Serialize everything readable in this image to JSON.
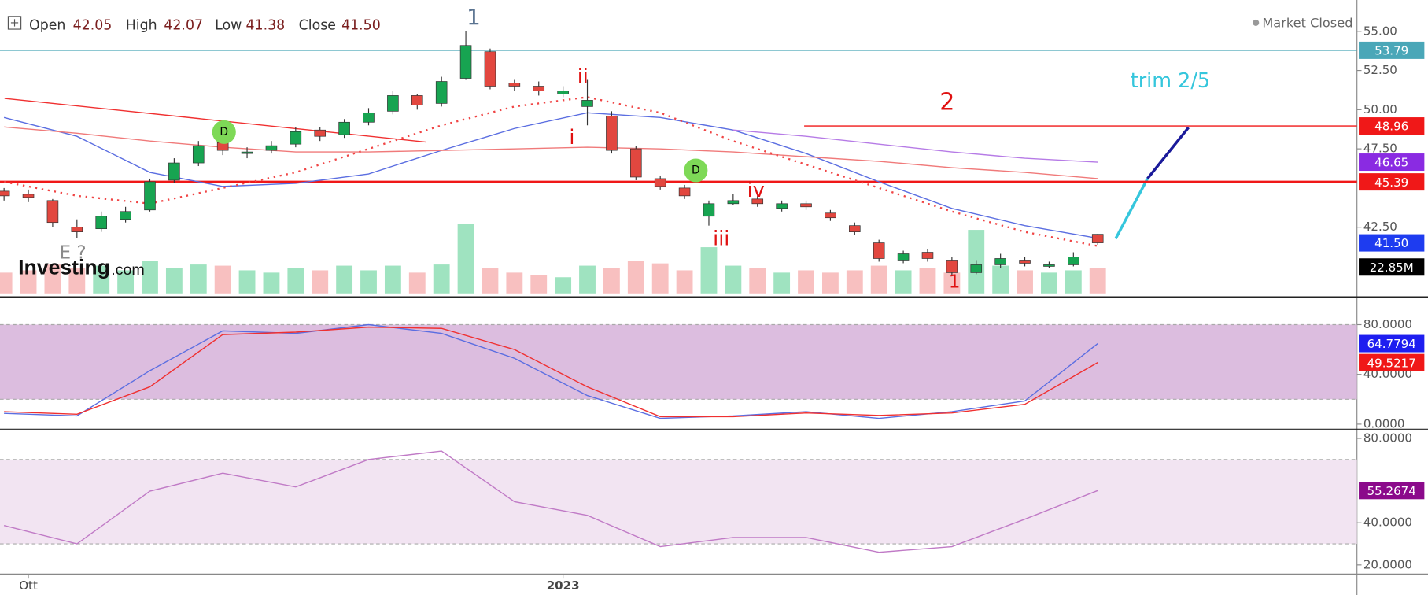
{
  "header": {
    "items": [
      {
        "label": "Open",
        "value": "42.05"
      },
      {
        "label": "High",
        "value": "42.07"
      },
      {
        "label": "Low",
        "value": "41.38"
      },
      {
        "label": "Close",
        "value": "41.50"
      }
    ],
    "status": "Market Closed"
  },
  "logo": [
    "Investing",
    ".com"
  ],
  "chart_data": [
    {
      "type": "candlestick",
      "x": [
        0,
        3,
        6,
        9,
        12,
        15,
        18,
        21,
        24,
        27,
        30,
        33,
        36,
        39,
        42,
        45,
        48,
        51,
        54,
        57,
        60,
        63,
        66,
        69,
        72,
        75,
        78,
        81,
        84,
        87,
        90,
        93,
        96,
        99,
        102,
        105,
        108,
        111,
        114,
        117,
        120,
        123,
        126,
        129,
        132,
        135
      ],
      "open": [
        44.8,
        44.6,
        44.2,
        42.5,
        42.4,
        43.0,
        43.6,
        45.5,
        46.6,
        47.9,
        47.2,
        47.4,
        47.8,
        48.7,
        48.4,
        49.2,
        49.9,
        50.9,
        50.4,
        52.0,
        53.7,
        51.7,
        51.5,
        51.0,
        50.2,
        49.6,
        47.5,
        45.6,
        45.0,
        43.2,
        44.0,
        44.3,
        43.7,
        44.0,
        43.4,
        42.6,
        41.5,
        40.4,
        40.9,
        40.4,
        39.6,
        40.1,
        40.4,
        40.0,
        40.1,
        42.05
      ],
      "high": [
        45.0,
        44.9,
        44.3,
        43.0,
        43.5,
        43.8,
        45.6,
        46.9,
        48.0,
        48.2,
        47.6,
        48.0,
        48.9,
        48.9,
        49.4,
        50.1,
        51.2,
        51.0,
        52.1,
        55.0,
        53.9,
        51.9,
        51.8,
        51.5,
        51.9,
        49.9,
        47.7,
        45.8,
        45.2,
        44.2,
        44.6,
        44.5,
        44.2,
        44.2,
        43.6,
        42.8,
        41.7,
        41.0,
        41.1,
        40.6,
        40.4,
        40.8,
        40.6,
        40.3,
        40.9,
        42.07
      ],
      "low": [
        44.2,
        44.1,
        42.5,
        41.8,
        42.2,
        42.8,
        43.5,
        45.3,
        46.4,
        47.1,
        46.9,
        47.2,
        47.6,
        48.0,
        48.2,
        49.0,
        49.7,
        50.0,
        50.2,
        51.9,
        51.3,
        51.2,
        50.9,
        50.8,
        49.0,
        47.2,
        45.5,
        44.9,
        44.3,
        42.6,
        43.9,
        43.8,
        43.5,
        43.6,
        42.9,
        42.0,
        40.3,
        40.2,
        40.3,
        39.4,
        39.5,
        39.9,
        40.0,
        39.9,
        40.0,
        41.38
      ],
      "close": [
        44.5,
        44.4,
        42.8,
        42.2,
        43.2,
        43.5,
        45.4,
        46.6,
        47.7,
        47.4,
        47.3,
        47.7,
        48.6,
        48.3,
        49.2,
        49.8,
        50.9,
        50.3,
        51.8,
        54.1,
        51.5,
        51.5,
        51.2,
        51.2,
        50.6,
        47.4,
        45.7,
        45.1,
        44.5,
        44.0,
        44.2,
        44.0,
        44.0,
        43.8,
        43.1,
        42.2,
        40.5,
        40.8,
        40.5,
        39.6,
        40.1,
        40.5,
        40.2,
        40.1,
        40.6,
        41.5
      ],
      "volume": [
        18,
        20,
        25,
        22,
        24,
        20,
        28,
        22,
        25,
        24,
        20,
        18,
        22,
        20,
        24,
        20,
        24,
        18,
        25,
        60,
        22,
        18,
        16,
        14,
        24,
        22,
        28,
        26,
        20,
        40,
        24,
        22,
        18,
        20,
        18,
        20,
        24,
        20,
        22,
        18,
        55,
        24,
        20,
        18,
        20,
        22
      ],
      "up_color": "#17a451",
      "down_color": "#e2473f",
      "volume_up_color": "#9fe3c0",
      "volume_down_color": "#f8c0c0",
      "xlim": [
        -0.5,
        167
      ],
      "ylim": [
        38.1,
        57.0
      ],
      "vlim": [
        0,
        254
      ],
      "yticks": [
        {
          "value": 55,
          "label": "55.00"
        },
        {
          "value": 52.5,
          "label": "52.50"
        },
        {
          "value": 50,
          "label": "50.00"
        },
        {
          "value": 47.5,
          "label": "47.50"
        },
        {
          "value": 42.5,
          "label": "42.50"
        }
      ],
      "overlay_x": [
        0,
        9,
        18,
        27,
        36,
        45,
        54,
        63,
        72,
        81,
        90,
        99,
        108,
        117,
        126,
        135
      ],
      "overlays": [
        {
          "color": "#5b6ee1",
          "dashed": false,
          "values": [
            49.5,
            48.3,
            46.0,
            45.1,
            45.3,
            45.9,
            47.4,
            48.8,
            49.8,
            49.5,
            48.7,
            47.2,
            45.4,
            43.7,
            42.6,
            41.8
          ]
        },
        {
          "color": "#f07a7a",
          "dashed": false,
          "values": [
            48.9,
            48.5,
            48.0,
            47.6,
            47.3,
            47.3,
            47.4,
            47.5,
            47.6,
            47.5,
            47.3,
            47.0,
            46.7,
            46.3,
            46.0,
            45.6
          ]
        },
        {
          "color": "#f04545",
          "dashed": true,
          "values": [
            45.4,
            44.5,
            44.0,
            45.0,
            46.0,
            47.5,
            49.0,
            50.2,
            50.8,
            49.8,
            48.0,
            46.5,
            45.0,
            43.5,
            42.2,
            41.3
          ]
        },
        {
          "color": "#b67be6",
          "dashed": false,
          "values": [
            null,
            null,
            null,
            null,
            null,
            null,
            null,
            null,
            null,
            null,
            48.7,
            48.3,
            47.8,
            47.3,
            46.9,
            46.65
          ]
        }
      ],
      "levels": [
        {
          "value": 53.79,
          "label": "53.79",
          "color": "#4aa7b8"
        },
        {
          "value": 48.96,
          "label": "48.96",
          "color": "#f01818"
        },
        {
          "value": 46.65,
          "label": "46.65",
          "color": "#8a2be2"
        },
        {
          "value": 45.39,
          "label": "45.39",
          "color": "#f01818"
        },
        {
          "value": 41.5,
          "label": "41.50",
          "color": "#1e3cf0"
        }
      ],
      "volume_badge": {
        "value": 22.85,
        "label": "22.85M",
        "color": "#000000"
      },
      "annotations": [
        {
          "text": "1",
          "color": "#5a7390"
        },
        {
          "text": "ii",
          "color": "#e01010"
        },
        {
          "text": "i",
          "color": "#e01010"
        },
        {
          "text": "iii",
          "color": "#e01010"
        },
        {
          "text": "iv",
          "color": "#e01010"
        },
        {
          "text": "2",
          "color": "#e01010"
        },
        {
          "text": "trim 2/5",
          "color": "#35c6dc"
        },
        {
          "text": "E ?",
          "color": "#8a8a8a"
        },
        {
          "text": "1",
          "color": "#e01010"
        },
        {
          "text": "D",
          "color": "#000000"
        },
        {
          "text": "D",
          "color": "#000000"
        }
      ]
    },
    {
      "type": "line",
      "x": [
        0,
        9,
        18,
        27,
        36,
        45,
        54,
        63,
        72,
        81,
        90,
        99,
        108,
        117,
        126,
        135
      ],
      "series": [
        {
          "color": "#5b6ee1",
          "values": [
            8.7,
            6.7,
            43,
            75,
            73,
            80,
            73,
            53,
            23,
            4.7,
            6.7,
            10,
            4.7,
            10,
            18.7,
            64.7794
          ]
        },
        {
          "color": "#f03030",
          "values": [
            10,
            8,
            30,
            72,
            74,
            78,
            77,
            60,
            30,
            6,
            6,
            9,
            7,
            9,
            16,
            49.5217
          ]
        }
      ],
      "badge_colors": [
        "#1e1ef0",
        "#f01818"
      ],
      "xlim": [
        -0.5,
        167
      ],
      "ylim": [
        -3.3,
        100
      ],
      "yticks": [
        {
          "value": 80,
          "label": "80.0000"
        },
        {
          "value": 40,
          "label": "40.0000"
        },
        {
          "value": 0,
          "label": "0.0000"
        }
      ],
      "band": [
        20,
        80
      ],
      "band_color": "#dcbddf"
    },
    {
      "type": "line",
      "x": [
        0,
        9,
        18,
        27,
        36,
        45,
        54,
        63,
        72,
        81,
        90,
        99,
        108,
        117,
        126,
        135
      ],
      "series": [
        {
          "color": "#c07ac6",
          "values": [
            38.7,
            30,
            55,
            63.5,
            57,
            70,
            74,
            50,
            43.5,
            28.7,
            33,
            33,
            26,
            28.7,
            41.7,
            55.2674
          ]
        }
      ],
      "badge_colors": [
        "#8b0a8b"
      ],
      "xlim": [
        -0.5,
        167
      ],
      "ylim": [
        15.7,
        83.5
      ],
      "yticks": [
        {
          "value": 80,
          "label": "80.0000"
        },
        {
          "value": 40,
          "label": "40.0000"
        },
        {
          "value": 20,
          "label": "20.0000"
        }
      ],
      "xticks": [
        {
          "value": 3,
          "label": "Ott"
        },
        {
          "value": 69,
          "label": "2023"
        }
      ],
      "band": [
        30,
        70
      ],
      "band_color": "#f2e4f2"
    }
  ]
}
